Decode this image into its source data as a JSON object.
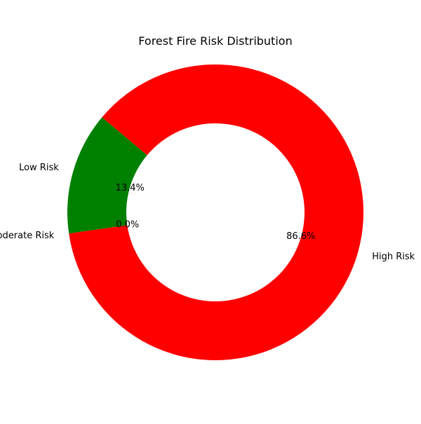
{
  "chart_data": {
    "type": "pie",
    "donut": true,
    "title": "Forest Fire Risk Distribution",
    "categories": [
      "Low Risk",
      "Moderate Risk",
      "High Risk"
    ],
    "values": [
      13.4,
      0.0,
      86.6
    ],
    "percent_labels": [
      "13.4%",
      "0.0%",
      "86.6%"
    ],
    "colors": [
      "#008000",
      "#ffa500",
      "#ff0000"
    ],
    "start_angle_deg": 140,
    "counterclockwise": true,
    "legend": false
  }
}
